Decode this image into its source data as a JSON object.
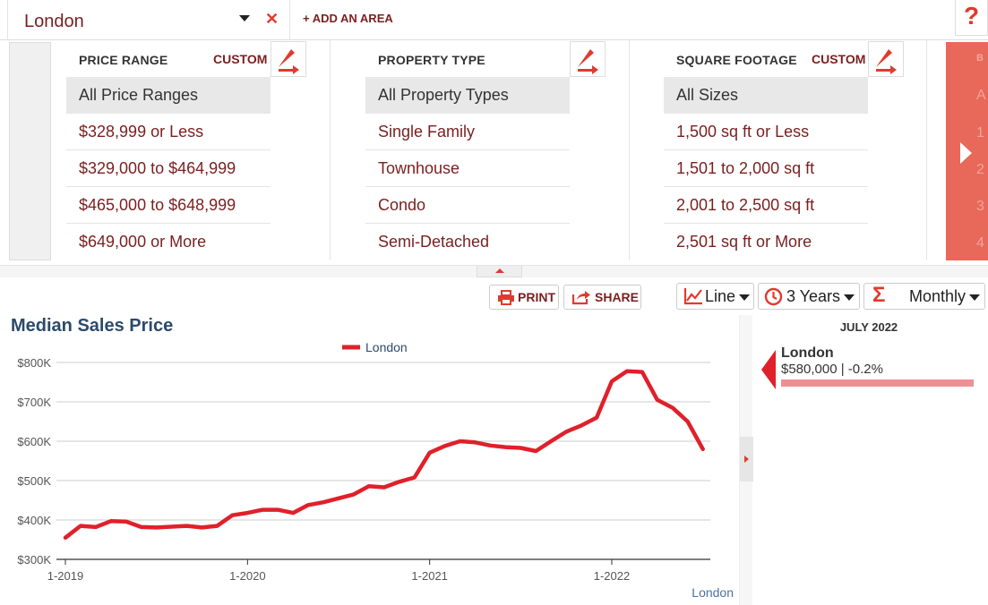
{
  "topbar": {
    "area_name": "London",
    "add_area_label": "+ ADD AN AREA",
    "help_label": "?"
  },
  "filters": {
    "price": {
      "heading": "PRICE RANGE",
      "custom_label": "CUSTOM",
      "options": [
        "All Price Ranges",
        "$328,999 or Less",
        "$329,000 to $464,999",
        "$465,000 to $648,999",
        "$649,000 or More"
      ]
    },
    "property": {
      "heading": "PROPERTY TYPE",
      "options": [
        "All Property Types",
        "Single Family",
        "Townhouse",
        "Condo",
        "Semi-Detached"
      ]
    },
    "sqft": {
      "heading": "SQUARE FOOTAGE",
      "custom_label": "CUSTOM",
      "options": [
        "All Sizes",
        "1,500 sq ft or Less",
        "1,501 to 2,000 sq ft",
        "2,001 to 2,500 sq ft",
        "2,501 sq ft or More"
      ]
    },
    "bedrooms_partial": [
      "B",
      "A",
      "1",
      "2",
      "3",
      "4"
    ]
  },
  "toolbar": {
    "print_label": "PRINT",
    "share_label": "SHARE",
    "chart_type": "Line",
    "period": "3 Years",
    "interval": "Monthly"
  },
  "chart": {
    "title": "Median Sales Price"
  },
  "chart_data": {
    "type": "line",
    "title": "Median Sales Price",
    "legend_position": "top-center",
    "source_label": "London",
    "xlabel": "",
    "ylabel": "",
    "x_ticks": [
      "1-2019",
      "1-2020",
      "1-2021",
      "1-2022"
    ],
    "y_ticks": [
      "$300K",
      "$400K",
      "$500K",
      "$600K",
      "$700K",
      "$800K"
    ],
    "ylim": [
      300000,
      800000
    ],
    "grid": true,
    "x": [
      "2019-01",
      "2019-02",
      "2019-03",
      "2019-04",
      "2019-05",
      "2019-06",
      "2019-07",
      "2019-08",
      "2019-09",
      "2019-10",
      "2019-11",
      "2019-12",
      "2020-01",
      "2020-02",
      "2020-03",
      "2020-04",
      "2020-05",
      "2020-06",
      "2020-07",
      "2020-08",
      "2020-09",
      "2020-10",
      "2020-11",
      "2020-12",
      "2021-01",
      "2021-02",
      "2021-03",
      "2021-04",
      "2021-05",
      "2021-06",
      "2021-07",
      "2021-08",
      "2021-09",
      "2021-10",
      "2021-11",
      "2021-12",
      "2022-01",
      "2022-02",
      "2022-03",
      "2022-04",
      "2022-05",
      "2022-06",
      "2022-07"
    ],
    "series": [
      {
        "name": "London",
        "color": "#e0202a",
        "values": [
          355000,
          385000,
          382000,
          397000,
          396000,
          382000,
          381000,
          383000,
          385000,
          381000,
          385000,
          412000,
          418000,
          426000,
          426000,
          418000,
          438000,
          445000,
          455000,
          465000,
          486000,
          483000,
          497000,
          508000,
          571000,
          588000,
          600000,
          597000,
          589000,
          585000,
          583000,
          575000,
          600000,
          624000,
          640000,
          660000,
          752000,
          778000,
          776000,
          705000,
          685000,
          650000,
          580000
        ]
      }
    ]
  },
  "sidepanel": {
    "date_label": "JULY 2022",
    "area_name": "London",
    "value_text": "$580,000 | -0.2%",
    "change_pct": -0.2
  }
}
